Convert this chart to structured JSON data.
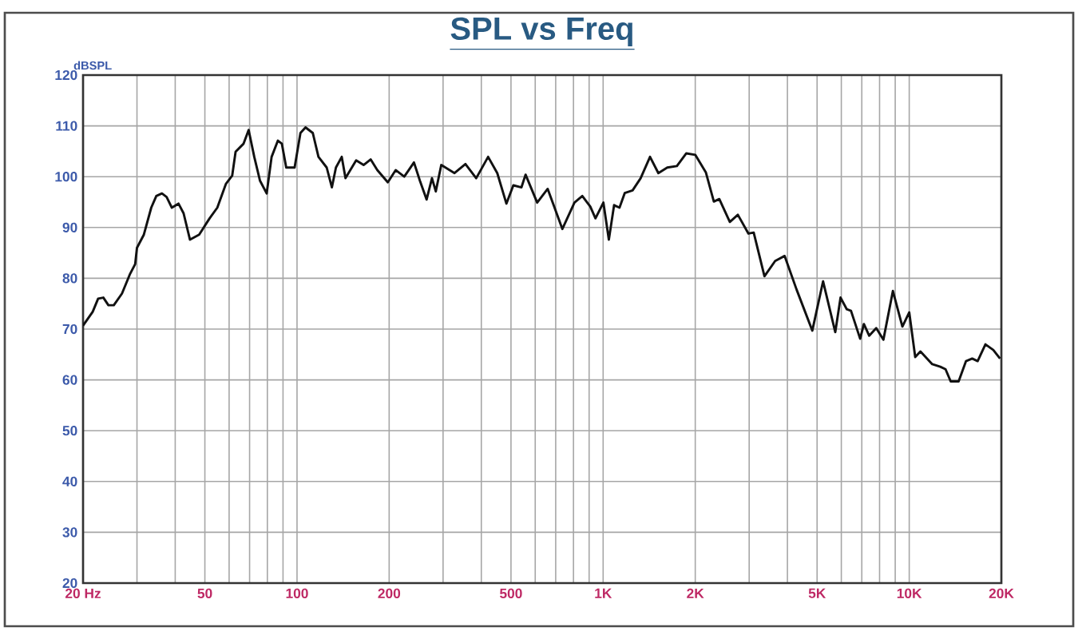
{
  "chart_data": {
    "type": "line",
    "title": "SPL vs Freq",
    "ylabel": "dBSPL",
    "log": "x",
    "grid": true,
    "color": "#111111",
    "x": [
      20,
      21.5,
      22.4,
      23.3,
      24.2,
      25.2,
      26.8,
      28.4,
      29.6,
      30,
      31.6,
      33.4,
      34.7,
      36.2,
      37.5,
      39,
      41,
      42.6,
      44.7,
      47.9,
      51.8,
      54.9,
      58.6,
      61.4,
      63,
      66.9,
      69.5,
      72.5,
      75.7,
      79.6,
      82.6,
      86.6,
      89.2,
      92.2,
      98.2,
      102.6,
      106.6,
      112.6,
      117.5,
      125,
      130,
      134,
      140,
      144,
      156,
      165,
      174,
      183,
      198,
      210,
      224,
      241,
      252,
      265,
      276,
      284,
      296,
      327,
      355,
      385,
      421,
      451,
      483,
      509,
      541,
      558,
      609,
      659,
      736,
      806,
      855,
      908,
      944,
      1002,
      1044,
      1086,
      1131,
      1177,
      1248,
      1326,
      1423,
      1515,
      1620,
      1742,
      1870,
      2000,
      2167,
      2300,
      2396,
      2594,
      2755,
      2984,
      3104,
      3366,
      3647,
      3918,
      4284,
      4824,
      5230,
      5734,
      5966,
      6253,
      6454,
      6914,
      7110,
      7402,
      7803,
      8233,
      8844,
      9499,
      10000,
      10460,
      10880,
      11890,
      12630,
      13140,
      13660,
      14500,
      15330,
      16060,
      16730,
      17740,
      18820,
      19800
    ],
    "values": [
      70.7,
      73.4,
      76,
      76.2,
      74.7,
      74.7,
      77,
      80.7,
      82.8,
      86,
      88.6,
      93.9,
      96.2,
      96.7,
      96,
      93.9,
      94.7,
      92.8,
      87.6,
      88.6,
      91.8,
      93.9,
      98.6,
      100.2,
      104.9,
      106.5,
      109.2,
      103.9,
      99.2,
      96.7,
      103.9,
      107.1,
      106.5,
      101.8,
      101.8,
      108.6,
      109.7,
      108.6,
      103.9,
      101.8,
      97.9,
      101.8,
      103.9,
      99.7,
      103.2,
      102.3,
      103.4,
      101.3,
      98.9,
      101.3,
      100,
      102.8,
      99.2,
      95.5,
      99.7,
      97.1,
      102.3,
      100.7,
      102.5,
      99.7,
      103.9,
      100.7,
      94.7,
      98.3,
      97.9,
      100.4,
      94.9,
      97.6,
      89.7,
      94.9,
      96.2,
      94.1,
      91.8,
      94.9,
      87.6,
      94.4,
      93.9,
      96.8,
      97.3,
      99.7,
      103.9,
      100.7,
      101.8,
      102.1,
      104.6,
      104.3,
      100.8,
      95.1,
      95.6,
      91.1,
      92.5,
      88.8,
      89,
      80.4,
      83.4,
      84.4,
      77.8,
      69.7,
      79.4,
      69.4,
      76.2,
      73.9,
      73.6,
      68.1,
      71,
      68.7,
      70.2,
      67.9,
      77.5,
      70.5,
      73.3,
      64.5,
      65.6,
      63.1,
      62.6,
      62.1,
      59.7,
      59.7,
      63.7,
      64.2,
      63.7,
      67,
      65.9,
      64.2
    ],
    "xlim": [
      20,
      20000
    ],
    "ylim": [
      20,
      120
    ],
    "xticks": [
      {
        "value": 20,
        "label": "20 Hz"
      },
      {
        "value": 30,
        "label": null
      },
      {
        "value": 40,
        "label": null
      },
      50,
      {
        "value": 60,
        "label": null
      },
      {
        "value": 70,
        "label": null
      },
      {
        "value": 80,
        "label": null
      },
      {
        "value": 90,
        "label": null
      },
      100,
      200,
      {
        "value": 300,
        "label": null
      },
      {
        "value": 400,
        "label": null
      },
      500,
      {
        "value": 600,
        "label": null
      },
      {
        "value": 700,
        "label": null
      },
      {
        "value": 800,
        "label": null
      },
      {
        "value": 900,
        "label": null
      },
      {
        "value": 1000,
        "label": "1K"
      },
      {
        "value": 2000,
        "label": "2K"
      },
      {
        "value": 3000,
        "label": null
      },
      {
        "value": 4000,
        "label": null
      },
      {
        "value": 5000,
        "label": "5K"
      },
      {
        "value": 6000,
        "label": null
      },
      {
        "value": 7000,
        "label": null
      },
      {
        "value": 8000,
        "label": null
      },
      {
        "value": 9000,
        "label": null
      },
      {
        "value": 10000,
        "label": "10K"
      },
      {
        "value": 20000,
        "label": "20K"
      }
    ],
    "yticks": [
      20,
      30,
      40,
      50,
      60,
      70,
      80,
      90,
      100,
      110,
      120
    ]
  }
}
